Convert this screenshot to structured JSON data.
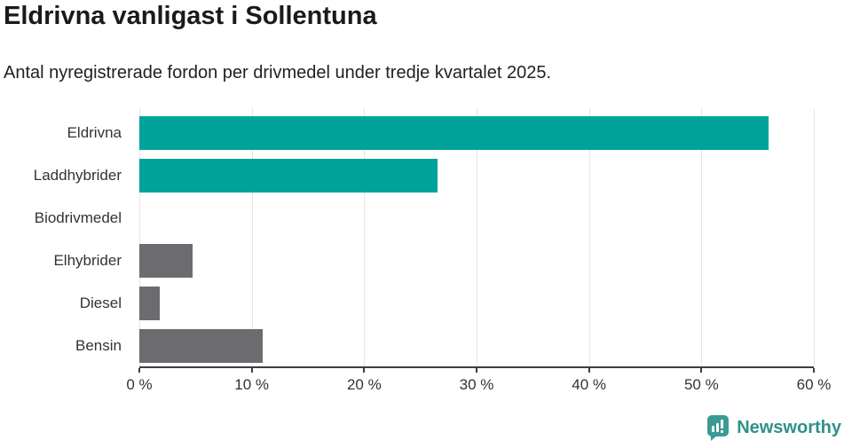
{
  "header": {
    "title": "Eldrivna vanligast i Sollentuna",
    "subtitle": "Antal nyregistrerade fordon per drivmedel under tredje kvartalet 2025."
  },
  "chart_data": {
    "type": "bar",
    "orientation": "horizontal",
    "title": "Eldrivna vanligast i Sollentuna",
    "subtitle": "Antal nyregistrerade fordon per drivmedel under tredje kvartalet 2025.",
    "categories": [
      "Eldrivna",
      "Laddhybrider",
      "Biodrivmedel",
      "Elhybrider",
      "Diesel",
      "Bensin"
    ],
    "values": [
      56,
      26.5,
      0,
      4.7,
      1.8,
      11
    ],
    "unit": "%",
    "xlabel": "",
    "ylabel": "",
    "xlim": [
      0,
      60
    ],
    "x_ticks": [
      "0 %",
      "10 %",
      "20 %",
      "30 %",
      "40 %",
      "50 %",
      "60 %"
    ],
    "bar_colors": [
      "#00A39A",
      "#00A39A",
      "#6B6B70",
      "#6B6B70",
      "#6B6B70",
      "#6B6B70"
    ],
    "grid": true,
    "legend": "none"
  },
  "colors": {
    "teal": "#00A39A",
    "gray": "#6B6B70",
    "axis": "#3C3C42",
    "gridline": "#E4E4E4",
    "text": "#333333"
  },
  "footer": {
    "brand": "Newsworthy",
    "brand_color": "#2F908A",
    "icon": "newsworthy-speech-bubble-chart",
    "icon_color": "#3B9A93"
  }
}
